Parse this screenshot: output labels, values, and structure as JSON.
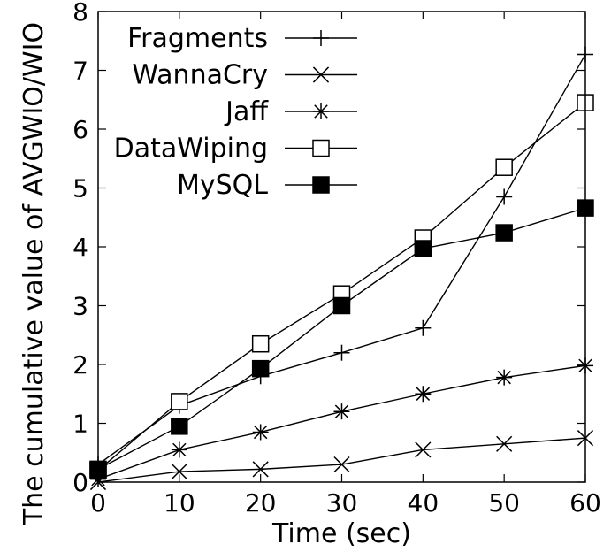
{
  "chart_data": {
    "type": "line",
    "title": "",
    "xlabel": "Time (sec)",
    "ylabel": "The cumulative value of AVGWIO/WIO",
    "xlim": [
      0,
      60
    ],
    "ylim": [
      0,
      8
    ],
    "x_ticks": [
      "0",
      "10",
      "20",
      "30",
      "40",
      "50",
      "60"
    ],
    "y_ticks": [
      "0",
      "1",
      "2",
      "3",
      "4",
      "5",
      "6",
      "7",
      "8"
    ],
    "x": [
      0,
      10,
      20,
      30,
      40,
      50,
      60
    ],
    "grid": false,
    "legend_position": "top-left",
    "line_color": "#000000",
    "series": [
      {
        "name": "Fragments",
        "marker": "plus",
        "values": [
          0.3,
          1.3,
          1.8,
          2.2,
          2.62,
          4.85,
          7.27
        ]
      },
      {
        "name": "WannaCry",
        "marker": "cross",
        "values": [
          0.0,
          0.18,
          0.22,
          0.3,
          0.55,
          0.65,
          0.75
        ]
      },
      {
        "name": "Jaff",
        "marker": "star",
        "values": [
          0.05,
          0.55,
          0.85,
          1.2,
          1.5,
          1.78,
          1.98
        ]
      },
      {
        "name": "DataWiping",
        "marker": "open-square",
        "values": [
          0.2,
          1.37,
          2.35,
          3.2,
          4.15,
          5.35,
          6.45
        ]
      },
      {
        "name": "MySQL",
        "marker": "filled-square",
        "values": [
          0.22,
          0.95,
          1.93,
          3.0,
          3.97,
          4.24,
          4.66
        ]
      }
    ]
  }
}
